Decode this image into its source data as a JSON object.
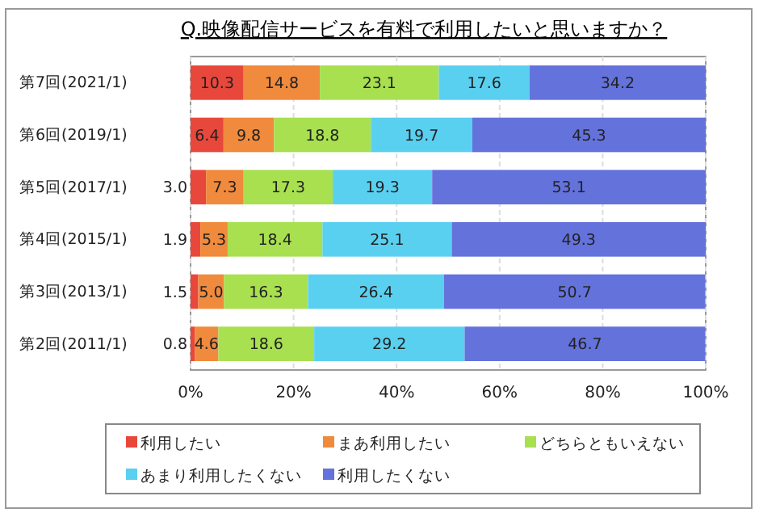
{
  "chart_data": {
    "type": "bar",
    "orientation": "horizontal",
    "stacked": true,
    "title": "Q.映像配信サービスを有料で利用したいと思いますか？",
    "categories": [
      "第7回(2021/1)",
      "第6回(2019/1)",
      "第5回(2017/1)",
      "第4回(2015/1)",
      "第3回(2013/1)",
      "第2回(2011/1)"
    ],
    "series": [
      {
        "name": "利用したい",
        "color": "#e8483c",
        "values": [
          10.3,
          6.4,
          3.0,
          1.9,
          1.5,
          0.8
        ],
        "value_labels": [
          "10.3",
          "6.4",
          "3.0",
          "1.9",
          "1.5",
          "0.8"
        ]
      },
      {
        "name": "まあ利用したい",
        "color": "#f08a3c",
        "values": [
          14.8,
          9.8,
          7.3,
          5.3,
          5.0,
          4.6
        ],
        "value_labels": [
          "14.8",
          "9.8",
          "7.3",
          "5.3",
          "5.0",
          "4.6"
        ]
      },
      {
        "name": "どちらともいえない",
        "color": "#a8e050",
        "values": [
          23.1,
          18.8,
          17.3,
          18.4,
          16.3,
          18.6
        ],
        "value_labels": [
          "23.1",
          "18.8",
          "17.3",
          "18.4",
          "16.3",
          "18.6"
        ]
      },
      {
        "name": "あまり利用したくない",
        "color": "#5ad0f0",
        "values": [
          17.6,
          19.7,
          19.3,
          25.1,
          26.4,
          29.2
        ],
        "value_labels": [
          "17.6",
          "19.7",
          "19.3",
          "25.1",
          "26.4",
          "29.2"
        ]
      },
      {
        "name": "利用したくない",
        "color": "#6472dc",
        "values": [
          34.2,
          45.3,
          53.1,
          49.3,
          50.7,
          46.7
        ],
        "value_labels": [
          "34.2",
          "45.3",
          "53.1",
          "49.3",
          "50.7",
          "46.7"
        ]
      }
    ],
    "xlim": [
      0,
      100
    ],
    "xticks": [
      {
        "value": 0,
        "label": "0%"
      },
      {
        "value": 20,
        "label": "20%"
      },
      {
        "value": 40,
        "label": "40%"
      },
      {
        "value": 60,
        "label": "60%"
      },
      {
        "value": 80,
        "label": "80%"
      },
      {
        "value": 100,
        "label": "100%"
      }
    ],
    "grid": "x",
    "legend": "bottom"
  }
}
